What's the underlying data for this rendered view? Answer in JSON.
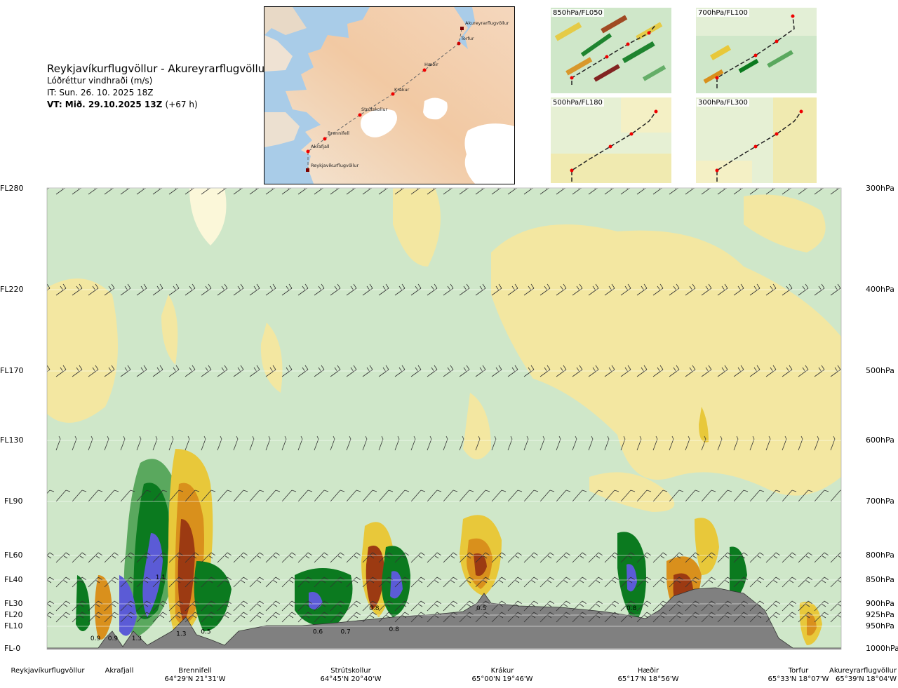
{
  "header": {
    "route": "Reykjavíkurflugvöllur - Akureyrarflugvöllur",
    "variable": "Lóðréttur vindhraði (m/s)",
    "issue_time": "IT: Sun. 26. 10. 2025 18Z",
    "valid_time": "VT: Mið. 29.10.2025 13Z",
    "lead": "(+67 h)"
  },
  "map": {
    "points": [
      {
        "name": "Akureyrarflugvöllur"
      },
      {
        "name": "Torfur"
      },
      {
        "name": "Hæðir"
      },
      {
        "name": "Krákur"
      },
      {
        "name": "Strútskollur"
      },
      {
        "name": "Brennifell"
      },
      {
        "name": "Akrafjall"
      },
      {
        "name": "Reykjavíkurflugvöllur"
      }
    ]
  },
  "thumbnails": [
    {
      "label": "850hPa/FL050"
    },
    {
      "label": "700hPa/FL100"
    },
    {
      "label": "500hPa/FL180"
    },
    {
      "label": "300hPa/FL300"
    }
  ],
  "colors": {
    "strong_down": "#5b5bd6",
    "down_3": "#0b7a1f",
    "down_2": "#5aa85e",
    "down_1": "#a8cfa2",
    "down_0": "#cfe7c9",
    "neutral": "#fbf7d9",
    "up_1": "#f3e7a1",
    "up_2": "#e8c83a",
    "up_3": "#d9901c",
    "up_4": "#9c3a12",
    "strong_up": "#7a1010",
    "terrain": "#808080"
  },
  "chart_data": {
    "type": "heatmap",
    "title": "Lóðréttur vindhraði (m/s)",
    "xlabel": "",
    "ylabel": "",
    "y_levels": [
      {
        "fl": "FL280",
        "hpa": "300hPa"
      },
      {
        "fl": "FL220",
        "hpa": "400hPa"
      },
      {
        "fl": "FL170",
        "hpa": "500hPa"
      },
      {
        "fl": "FL130",
        "hpa": "600hPa"
      },
      {
        "fl": "FL90",
        "hpa": "700hPa"
      },
      {
        "fl": "FL60",
        "hpa": "800hPa"
      },
      {
        "fl": "FL40",
        "hpa": "850hPa"
      },
      {
        "fl": "FL30",
        "hpa": "900hPa"
      },
      {
        "fl": "FL20",
        "hpa": "925hPa"
      },
      {
        "fl": "FL10",
        "hpa": "950hPa"
      },
      {
        "fl": "FL-0",
        "hpa": "1000hPa"
      }
    ],
    "locations": [
      {
        "name": "Reykjavíkurflugvöllur",
        "coord": ""
      },
      {
        "name": "Akrafjall",
        "coord": ""
      },
      {
        "name": "Brennifell",
        "coord": "64°29'N 21°31'W"
      },
      {
        "name": "Strútskollur",
        "coord": "64°45'N 20°40'W"
      },
      {
        "name": "Krákur",
        "coord": "65°00'N 19°46'W"
      },
      {
        "name": "Hæðir",
        "coord": "65°17'N 18°56'W"
      },
      {
        "name": "Torfur",
        "coord": "65°33'N 18°07'W"
      },
      {
        "name": "Akureyrarflugvöllur",
        "coord": "65°39'N 18°04'W"
      }
    ],
    "value_labels": [
      {
        "text": "0.9",
        "dist": 0.061,
        "fl": 5
      },
      {
        "text": "0.9",
        "dist": 0.083,
        "fl": 5
      },
      {
        "text": "1.3",
        "dist": 0.113,
        "fl": 5
      },
      {
        "text": "1.1",
        "dist": 0.143,
        "fl": 43
      },
      {
        "text": "1.3",
        "dist": 0.169,
        "fl": 7
      },
      {
        "text": "0.5",
        "dist": 0.2,
        "fl": 8
      },
      {
        "text": "0.6",
        "dist": 0.341,
        "fl": 8
      },
      {
        "text": "0.7",
        "dist": 0.376,
        "fl": 8
      },
      {
        "text": "0.8",
        "dist": 0.412,
        "fl": 27
      },
      {
        "text": "0.8",
        "dist": 0.437,
        "fl": 9
      },
      {
        "text": "0.5",
        "dist": 0.547,
        "fl": 27
      },
      {
        "text": "0.8",
        "dist": 0.736,
        "fl": 27
      }
    ]
  }
}
